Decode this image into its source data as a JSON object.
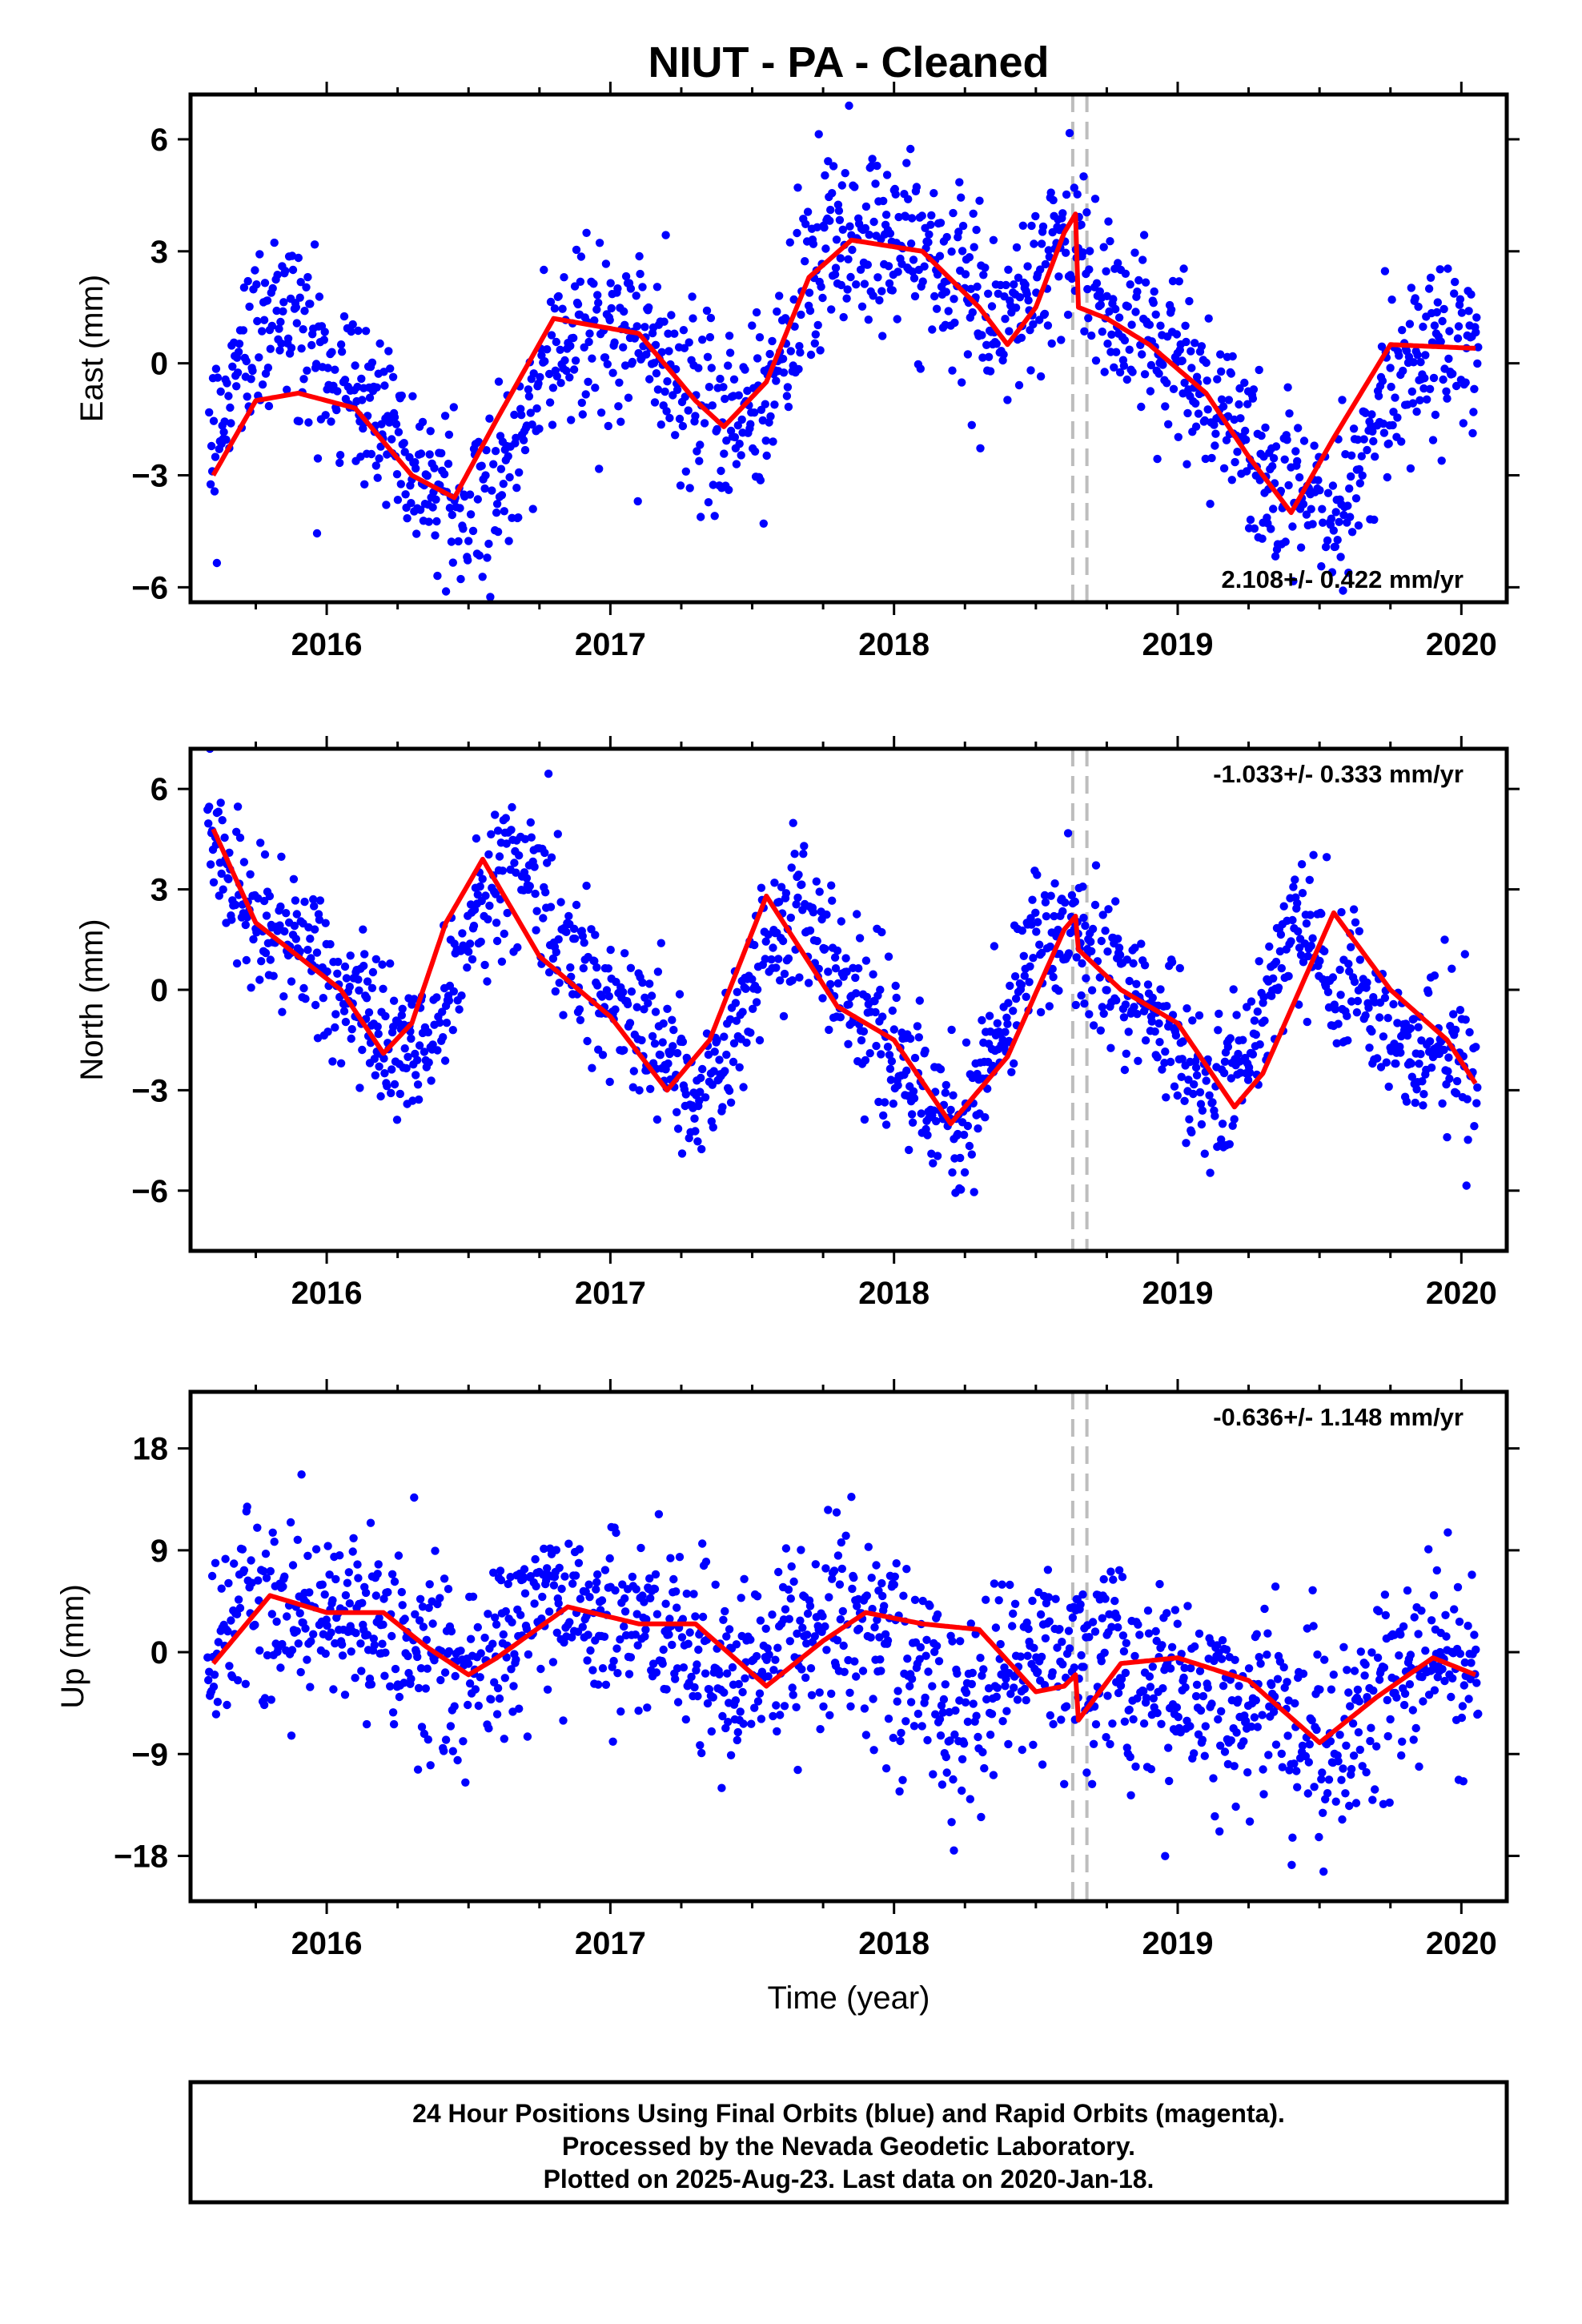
{
  "title": "NIUT  - PA - Cleaned",
  "colors": {
    "final_points": "#0000ff",
    "fit_line": "#ff0000",
    "break_line": "#bdbdbd",
    "axes": "#000000"
  },
  "chart_data": [
    {
      "type": "scatter",
      "component": "east",
      "ylabel": "East (mm)",
      "xlabel": "",
      "xlim": [
        2015.52,
        2020.16
      ],
      "ylim": [
        -6.4,
        7.2
      ],
      "yticks": [
        6,
        3,
        0,
        -3,
        -6
      ],
      "xticks": [
        2016,
        2017,
        2018,
        2019,
        2020
      ],
      "grid": false,
      "rate_text": "2.108+/- 0.422 mm/yr",
      "rate_position": "bottom-right",
      "break_lines": [
        2018.63,
        2018.68
      ],
      "seasonal_fit": {
        "x": [
          2015.6,
          2015.75,
          2015.9,
          2016.1,
          2016.3,
          2016.45,
          2016.6,
          2016.8,
          2017.1,
          2017.3,
          2017.4,
          2017.55,
          2017.7,
          2017.85,
          2018.1,
          2018.3,
          2018.4,
          2018.5,
          2018.6,
          2018.64,
          2018.65,
          2018.75,
          2018.9,
          2019.1,
          2019.25,
          2019.4,
          2019.55,
          2019.75,
          2020.05
        ],
        "y": [
          -3.0,
          -1.0,
          -0.8,
          -1.2,
          -3.0,
          -3.6,
          -1.5,
          1.2,
          0.8,
          -1.0,
          -1.7,
          -0.5,
          2.3,
          3.3,
          3.0,
          1.5,
          0.5,
          1.5,
          3.5,
          4.0,
          1.5,
          1.2,
          0.5,
          -0.8,
          -2.5,
          -4.0,
          -2.0,
          0.5,
          0.4
        ]
      },
      "scatter_center": [
        -2.4,
        0.5,
        1.5,
        0.2,
        -0.8,
        -1.5,
        -3.6,
        -4.4,
        -3.0,
        0.0,
        1.0,
        0.8,
        0.5,
        -1.0,
        -1.5,
        -0.8,
        2.0,
        3.5,
        3.5,
        3.0,
        2.0,
        1.0,
        1.5,
        3.8,
        1.5,
        1.0,
        0.0,
        -1.0,
        -2.5,
        -3.5,
        -4.0,
        -2.5,
        0.0,
        0.6,
        0.4
      ],
      "scatter_sigma": 1.2
    },
    {
      "type": "scatter",
      "component": "north",
      "ylabel": "North (mm)",
      "xlabel": "",
      "xlim": [
        2015.52,
        2020.16
      ],
      "ylim": [
        -7.8,
        7.2
      ],
      "yticks": [
        6,
        3,
        0,
        -3,
        -6
      ],
      "xticks": [
        2016,
        2017,
        2018,
        2019,
        2020
      ],
      "grid": false,
      "rate_text": "-1.033+/- 0.333 mm/yr",
      "rate_position": "top-right",
      "break_lines": [
        2018.63,
        2018.68
      ],
      "seasonal_fit": {
        "x": [
          2015.6,
          2015.75,
          2015.9,
          2016.05,
          2016.2,
          2016.3,
          2016.42,
          2016.55,
          2016.75,
          2017.0,
          2017.2,
          2017.35,
          2017.55,
          2017.8,
          2018.0,
          2018.2,
          2018.4,
          2018.6,
          2018.64,
          2018.65,
          2018.8,
          2019.0,
          2019.2,
          2019.3,
          2019.55,
          2019.75,
          2019.95,
          2020.05
        ],
        "y": [
          4.8,
          2.0,
          1.0,
          0.0,
          -1.9,
          -1.0,
          2.0,
          3.9,
          1.0,
          -0.8,
          -3.0,
          -1.5,
          2.8,
          -0.5,
          -1.5,
          -4.0,
          -2.0,
          1.8,
          2.2,
          1.2,
          0.0,
          -1.0,
          -3.5,
          -2.5,
          2.3,
          0.0,
          -1.5,
          -2.8
        ]
      },
      "scatter_center": [
        5.0,
        2.5,
        1.3,
        0.8,
        -0.5,
        -2.0,
        -1.5,
        1.5,
        4.0,
        2.5,
        0.5,
        -0.5,
        -1.5,
        -3.5,
        -1.5,
        1.5,
        2.5,
        0.0,
        -1.0,
        -3.0,
        -4.5,
        -2.0,
        1.5,
        2.0,
        0.5,
        -0.5,
        -1.5,
        -3.5,
        -1.5,
        2.0,
        1.0,
        -0.5,
        -1.5,
        -2.0,
        -2.8
      ],
      "scatter_sigma": 1.1
    },
    {
      "type": "scatter",
      "component": "up",
      "ylabel": "Up (mm)",
      "xlabel": "Time (year)",
      "xlim": [
        2015.52,
        2020.16
      ],
      "ylim": [
        -22,
        23
      ],
      "yticks": [
        18,
        9,
        0,
        -9,
        -18
      ],
      "xticks": [
        2016,
        2017,
        2018,
        2019,
        2020
      ],
      "grid": false,
      "rate_text": "-0.636+/- 1.148 mm/yr",
      "rate_position": "top-right",
      "break_lines": [
        2018.63,
        2018.68
      ],
      "seasonal_fit": {
        "x": [
          2015.6,
          2015.8,
          2016.0,
          2016.2,
          2016.35,
          2016.5,
          2016.6,
          2016.85,
          2017.1,
          2017.3,
          2017.55,
          2017.75,
          2017.9,
          2018.1,
          2018.3,
          2018.5,
          2018.6,
          2018.64,
          2018.65,
          2018.8,
          2019.0,
          2019.25,
          2019.5,
          2019.7,
          2019.9,
          2020.05
        ],
        "y": [
          -1.0,
          5.0,
          3.5,
          3.5,
          0.5,
          -2.0,
          -0.5,
          4.0,
          2.5,
          2.5,
          -3.0,
          1.0,
          3.5,
          2.5,
          2.0,
          -3.5,
          -3.0,
          -2.0,
          -6.0,
          -1.0,
          -0.5,
          -2.5,
          -8.0,
          -4.0,
          -0.5,
          -2.0
        ]
      },
      "scatter_center": [
        0.0,
        4.0,
        5.0,
        3.0,
        3.0,
        2.0,
        -1.0,
        -2.0,
        1.0,
        5.0,
        4.0,
        2.0,
        3.0,
        0.0,
        -3.0,
        -1.0,
        2.0,
        3.0,
        1.0,
        -2.0,
        -5.0,
        -3.0,
        -1.0,
        -2.0,
        0.0,
        -3.0,
        -4.0,
        -5.0,
        -4.0,
        -6.0,
        -8.0,
        -6.0,
        -2.0,
        0.0,
        -2.0
      ],
      "scatter_sigma": 4.2
    }
  ],
  "footer": {
    "line1": "24 Hour Positions Using Final Orbits (blue) and Rapid Orbits (magenta).",
    "line2": "Processed by the Nevada Geodetic Laboratory.",
    "line3": "Plotted on 2025-Aug-23. Last data on 2020-Jan-18."
  }
}
